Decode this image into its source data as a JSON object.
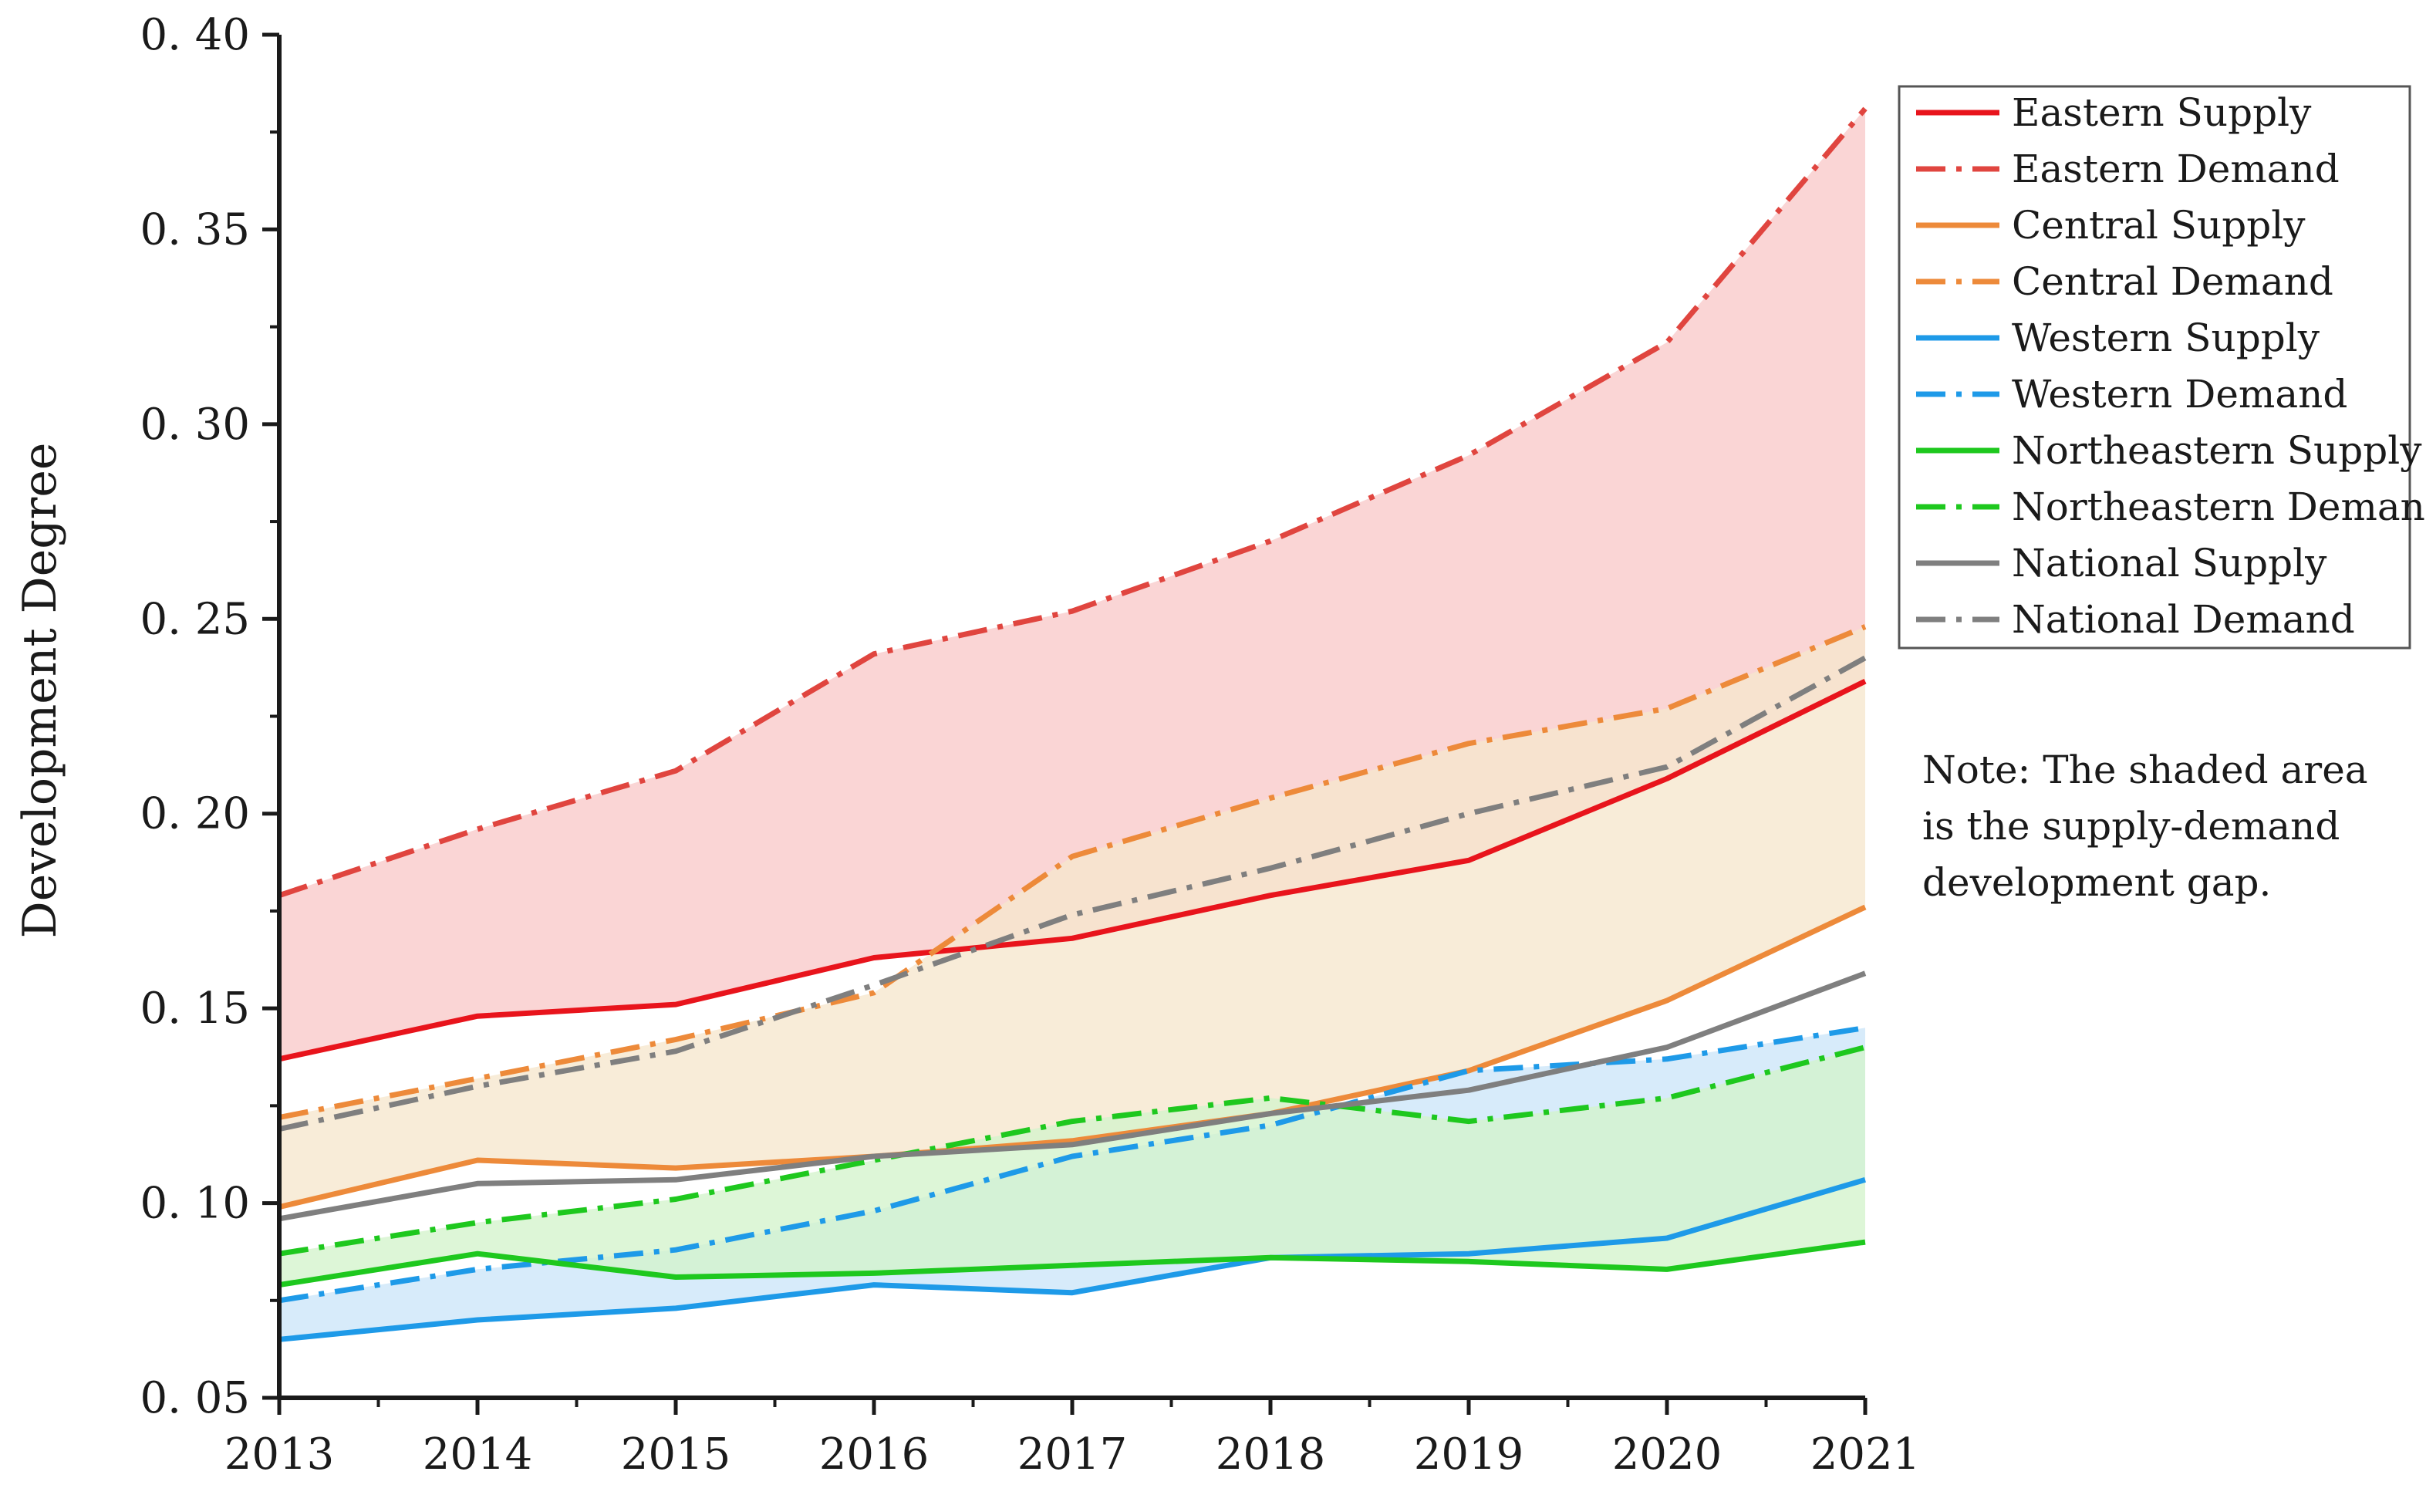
{
  "chart_data": {
    "type": "line",
    "title": "",
    "xlabel": "",
    "ylabel": "Development Degree",
    "x": [
      2013,
      2014,
      2015,
      2016,
      2017,
      2018,
      2019,
      2020,
      2021
    ],
    "x_tick_labels": [
      "2013",
      "2014",
      "2015",
      "2016",
      "2017",
      "2018",
      "2019",
      "2020",
      "2021"
    ],
    "ylim": [
      0.05,
      0.4
    ],
    "y_ticks": [
      0.05,
      0.1,
      0.15,
      0.2,
      0.25,
      0.3,
      0.35,
      0.4
    ],
    "y_tick_labels": [
      "0. 05",
      "0. 10",
      "0. 15",
      "0. 20",
      "0. 25",
      "0. 30",
      "0. 35",
      "0. 40"
    ],
    "grid": false,
    "legend_position": "top-right",
    "series": [
      {
        "name": "Eastern Supply",
        "region": "eastern",
        "kind": "supply",
        "color": "#e8141c",
        "values": [
          0.137,
          0.148,
          0.151,
          0.163,
          0.168,
          0.179,
          0.188,
          0.209,
          0.234
        ]
      },
      {
        "name": "Eastern Demand",
        "region": "eastern",
        "kind": "demand",
        "color": "#e0453f",
        "values": [
          0.179,
          0.196,
          0.211,
          0.241,
          0.252,
          0.27,
          0.292,
          0.321,
          0.381
        ]
      },
      {
        "name": "Central Supply",
        "region": "central",
        "kind": "supply",
        "color": "#ed8a3a",
        "values": [
          0.099,
          0.111,
          0.109,
          0.112,
          0.116,
          0.123,
          0.134,
          0.152,
          0.176
        ]
      },
      {
        "name": "Central Demand",
        "region": "central",
        "kind": "demand",
        "color": "#ed8a3a",
        "values": [
          0.122,
          0.132,
          0.142,
          0.154,
          0.189,
          0.204,
          0.218,
          0.227,
          0.248
        ]
      },
      {
        "name": "Western Supply",
        "region": "western",
        "kind": "supply",
        "color": "#1e9ae8",
        "values": [
          0.065,
          0.07,
          0.073,
          0.079,
          0.077,
          0.086,
          0.087,
          0.091,
          0.106
        ]
      },
      {
        "name": "Western Demand",
        "region": "western",
        "kind": "demand",
        "color": "#1e9ae8",
        "values": [
          0.075,
          0.083,
          0.088,
          0.098,
          0.112,
          0.12,
          0.134,
          0.137,
          0.145
        ]
      },
      {
        "name": "Northeastern Supply",
        "region": "northeastern",
        "kind": "supply",
        "color": "#1ec81e",
        "values": [
          0.079,
          0.087,
          0.081,
          0.082,
          0.084,
          0.086,
          0.085,
          0.083,
          0.09
        ]
      },
      {
        "name": "Northeastern Demand",
        "region": "northeastern",
        "kind": "demand",
        "color": "#1ec81e",
        "values": [
          0.087,
          0.095,
          0.101,
          0.111,
          0.121,
          0.127,
          0.121,
          0.127,
          0.14
        ]
      },
      {
        "name": "National Supply",
        "region": "national",
        "kind": "supply",
        "color": "#7f7f7f",
        "values": [
          0.096,
          0.105,
          0.106,
          0.112,
          0.115,
          0.123,
          0.129,
          0.14,
          0.159
        ]
      },
      {
        "name": "National Demand",
        "region": "national",
        "kind": "demand",
        "color": "#7f7f7f",
        "values": [
          0.119,
          0.13,
          0.139,
          0.156,
          0.174,
          0.186,
          0.2,
          0.212,
          0.24
        ]
      }
    ],
    "shaded_gaps": [
      {
        "region": "eastern",
        "color": "#f8c9c9"
      },
      {
        "region": "central",
        "color": "#f6e7cd"
      },
      {
        "region": "western",
        "color": "#cce6f8"
      },
      {
        "region": "northeastern",
        "color": "#d4f3cc"
      }
    ],
    "annotation": {
      "lines": [
        "Note: The shaded area",
        "is the supply-demand",
        "development gap."
      ]
    }
  }
}
